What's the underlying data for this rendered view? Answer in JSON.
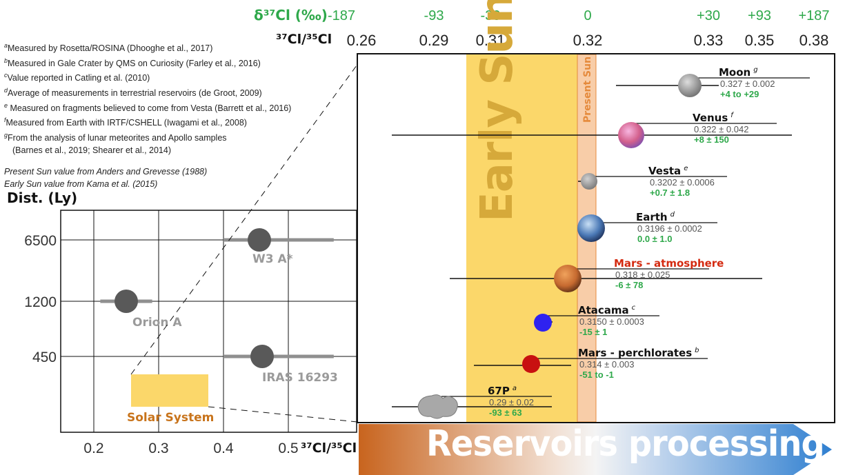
{
  "header": {
    "delta_label": "δ³⁷Cl (‰)",
    "ratio_label": "³⁷Cl/³⁵Cl",
    "delta_ticks": [
      "-187",
      "-93",
      "-30",
      "0",
      "+30",
      "+93",
      "+187"
    ],
    "ratio_ticks": [
      "0.26",
      "0.29",
      "0.31",
      "0.32",
      "0.33",
      "0.35",
      "0.38"
    ]
  },
  "notes": {
    "items": [
      {
        "sup": "a",
        "text": "Measured by Rosetta/ROSINA (Dhooghe et al., 2017)"
      },
      {
        "sup": "b",
        "text": "Measured in Gale Crater by QMS on Curiosity (Farley et al., 2016)"
      },
      {
        "sup": "c",
        "text": "Value reported in Catling et al. (2010)"
      },
      {
        "sup": "d",
        "text": "Average of measurements in terrestrial reservoirs (de Groot, 2009)"
      },
      {
        "sup": "e",
        "text": " Measured on fragments believed to come from Vesta (Barrett et al., 2016)"
      },
      {
        "sup": "f",
        "text": "Measured from Earth with IRTF/CSHELL (Iwagami et al., 2008)"
      },
      {
        "sup": "g",
        "text": "From the analysis of lunar meteorites and Apollo samples"
      }
    ],
    "continuation": "(Barnes et al., 2019; Shearer et al., 2014)",
    "sources": [
      "Present Sun value from Anders and Grevesse (1988)",
      "Early Sun value from Kama et al. (2015)"
    ]
  },
  "colors": {
    "green": "#2ea84a",
    "early_sun": "#fbd76a",
    "present_sun": "#f8cda8",
    "present_sun_text": "#e58a3c",
    "mars_atm": "#d42a10",
    "solar_system": "#c8741c",
    "banner_start": "#c8641e",
    "banner_end": "#2f7fd0"
  },
  "banner": {
    "text": "Reservoirs processing"
  },
  "chart_data": [
    {
      "type": "scatter",
      "ylabel": "Dist. (Ly)",
      "xlabel": "³⁷Cl/³⁵Cl",
      "x_ticks": [
        "0.2",
        "0.3",
        "0.4",
        "0.5"
      ],
      "y_ticks": [
        "6500",
        "1200",
        "450"
      ],
      "xlim": [
        0.15,
        0.6
      ],
      "points": [
        {
          "name": "W3 A*",
          "x": 0.47,
          "y": "6500",
          "xerr": [
            0.4,
            0.57
          ]
        },
        {
          "name": "Orion A",
          "x": 0.25,
          "y": "1200",
          "xerr": [
            0.21,
            0.29
          ]
        },
        {
          "name": "IRAS 16293",
          "x": 0.47,
          "y": "450",
          "xerr": [
            0.4,
            0.57
          ]
        }
      ],
      "region": {
        "name": "Solar System",
        "xrange": [
          0.26,
          0.38
        ]
      }
    },
    {
      "type": "scatter",
      "bands": [
        {
          "name": "Early Sun",
          "xrange": [
            0.303,
            0.3195
          ]
        },
        {
          "name": "Present Sun",
          "xrange": [
            0.3195,
            0.3222
          ]
        }
      ],
      "points": [
        {
          "name": "Moon",
          "sup": "g",
          "ratio": "0.327 ± 0.002",
          "delta": "+4 to +29",
          "x": 0.327,
          "xerr": [
            0.3237,
            0.3295
          ]
        },
        {
          "name": "Venus",
          "sup": "f",
          "ratio": "0.322 ± 0.042",
          "delta": "+8 ± 150",
          "x": 0.322,
          "xerr": [
            0.28,
            0.364
          ]
        },
        {
          "name": "Vesta",
          "sup": "e",
          "ratio": "0.3202 ± 0.0006",
          "delta": "+0.7 ± 1.8",
          "x": 0.3202,
          "xerr": [
            0.3196,
            0.3208
          ]
        },
        {
          "name": "Earth",
          "sup": "d",
          "ratio": "0.3196 ± 0.0002",
          "delta": "0.0 ± 1.0",
          "x": 0.3196,
          "xerr": [
            0.3194,
            0.3198
          ]
        },
        {
          "name": "Mars - atmosphere",
          "sup": "",
          "ratio": "0.318 ± 0.025",
          "delta": "-6 ± 78",
          "x": 0.318,
          "xerr": [
            0.293,
            0.343
          ]
        },
        {
          "name": "Atacama",
          "sup": "c",
          "ratio": "0.3150 ± 0.0003",
          "delta": "-15 ± 1",
          "x": 0.315,
          "xerr": [
            0.3147,
            0.3153
          ]
        },
        {
          "name": "Mars - perchlorates",
          "sup": "b",
          "ratio": "0.314 ± 0.003",
          "delta": "-51 to -1",
          "x": 0.3145,
          "xerr": [
            0.303,
            0.319
          ]
        },
        {
          "name": "67P",
          "sup": "a",
          "ratio": "0.29 ± 0.02",
          "delta": "-93 ± 63",
          "x": 0.29,
          "xerr": [
            0.27,
            0.31
          ]
        }
      ]
    }
  ]
}
